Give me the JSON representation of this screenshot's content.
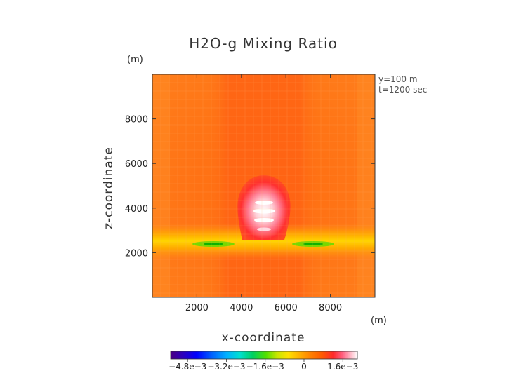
{
  "chart_data": {
    "type": "heatmap",
    "title": "H2O-g Mixing Ratio",
    "xlabel": "x-coordinate",
    "ylabel": "z-coordinate",
    "x_unit": "(m)",
    "y_unit": "(m)",
    "xlim": [
      0,
      10000
    ],
    "ylim": [
      0,
      10000
    ],
    "x_ticks": [
      2000,
      4000,
      6000,
      8000
    ],
    "y_ticks": [
      2000,
      4000,
      6000,
      8000
    ],
    "x_tick_labels": [
      "2000",
      "4000",
      "6000",
      "8000"
    ],
    "y_tick_labels": [
      "2000",
      "4000",
      "6000",
      "8000"
    ],
    "annotations": [
      "y=100 m",
      "t=1200 sec"
    ],
    "colorbar": {
      "range": [
        -0.0055,
        0.0022
      ],
      "tick_values": [
        -0.0048,
        -0.0032,
        -0.0016,
        0,
        0.0016
      ],
      "tick_labels": [
        "−4.8e−3",
        "−3.2e−3",
        "−1.6e−3",
        "0",
        "1.6e−3"
      ],
      "colors": [
        "#4b0082",
        "#2a00c0",
        "#0000ff",
        "#0060ff",
        "#00b0ff",
        "#00e0d0",
        "#00d060",
        "#50e000",
        "#c8e600",
        "#ffe000",
        "#ffb000",
        "#ff8000",
        "#ff5a00",
        "#ff2a2a",
        "#ff6080",
        "#ffb0c0",
        "#ffffff"
      ]
    },
    "features": [
      {
        "name": "background",
        "value": 0.0001
      },
      {
        "name": "central-column",
        "x": 5000,
        "z_range": [
          0,
          10000
        ],
        "value": 0.0002
      },
      {
        "name": "moist-plume",
        "x": 5000,
        "z": 3900,
        "value": 0.0018
      },
      {
        "name": "layer-left-min",
        "x": 3000,
        "z": 2500,
        "value": -0.0012
      },
      {
        "name": "layer-right-min",
        "x": 7000,
        "z": 2500,
        "value": -0.0012
      }
    ]
  }
}
